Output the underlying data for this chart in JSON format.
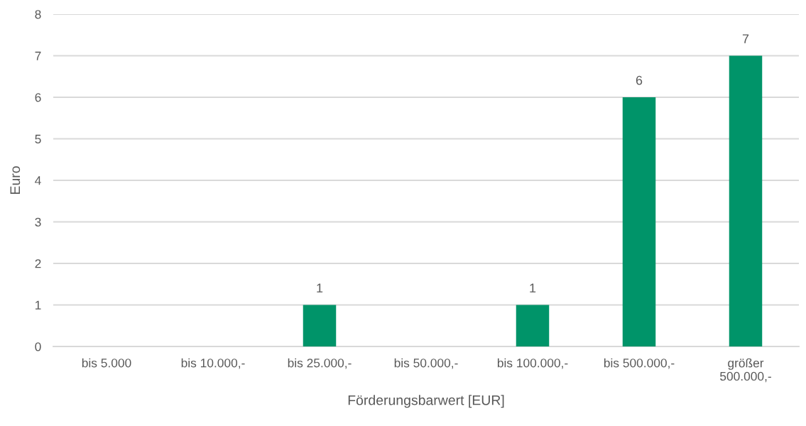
{
  "chart_data": {
    "type": "bar",
    "xlabel": "Förderungsbarwert [EUR]",
    "ylabel": "Euro",
    "categories": [
      "bis 5.000",
      "bis 10.000,-",
      "bis 25.000,-",
      "bis 50.000,-",
      "bis 100.000,-",
      "bis 500.000,-",
      "größer 500.000,-"
    ],
    "values": [
      0,
      0,
      1,
      0,
      1,
      6,
      7
    ],
    "value_labels": [
      null,
      null,
      "1",
      null,
      "1",
      "6",
      "7"
    ],
    "color": "#009469",
    "ylim": [
      0,
      8
    ],
    "yticks": [
      0,
      1,
      2,
      3,
      4,
      5,
      6,
      7,
      8
    ],
    "grid": "y",
    "legend": false
  }
}
